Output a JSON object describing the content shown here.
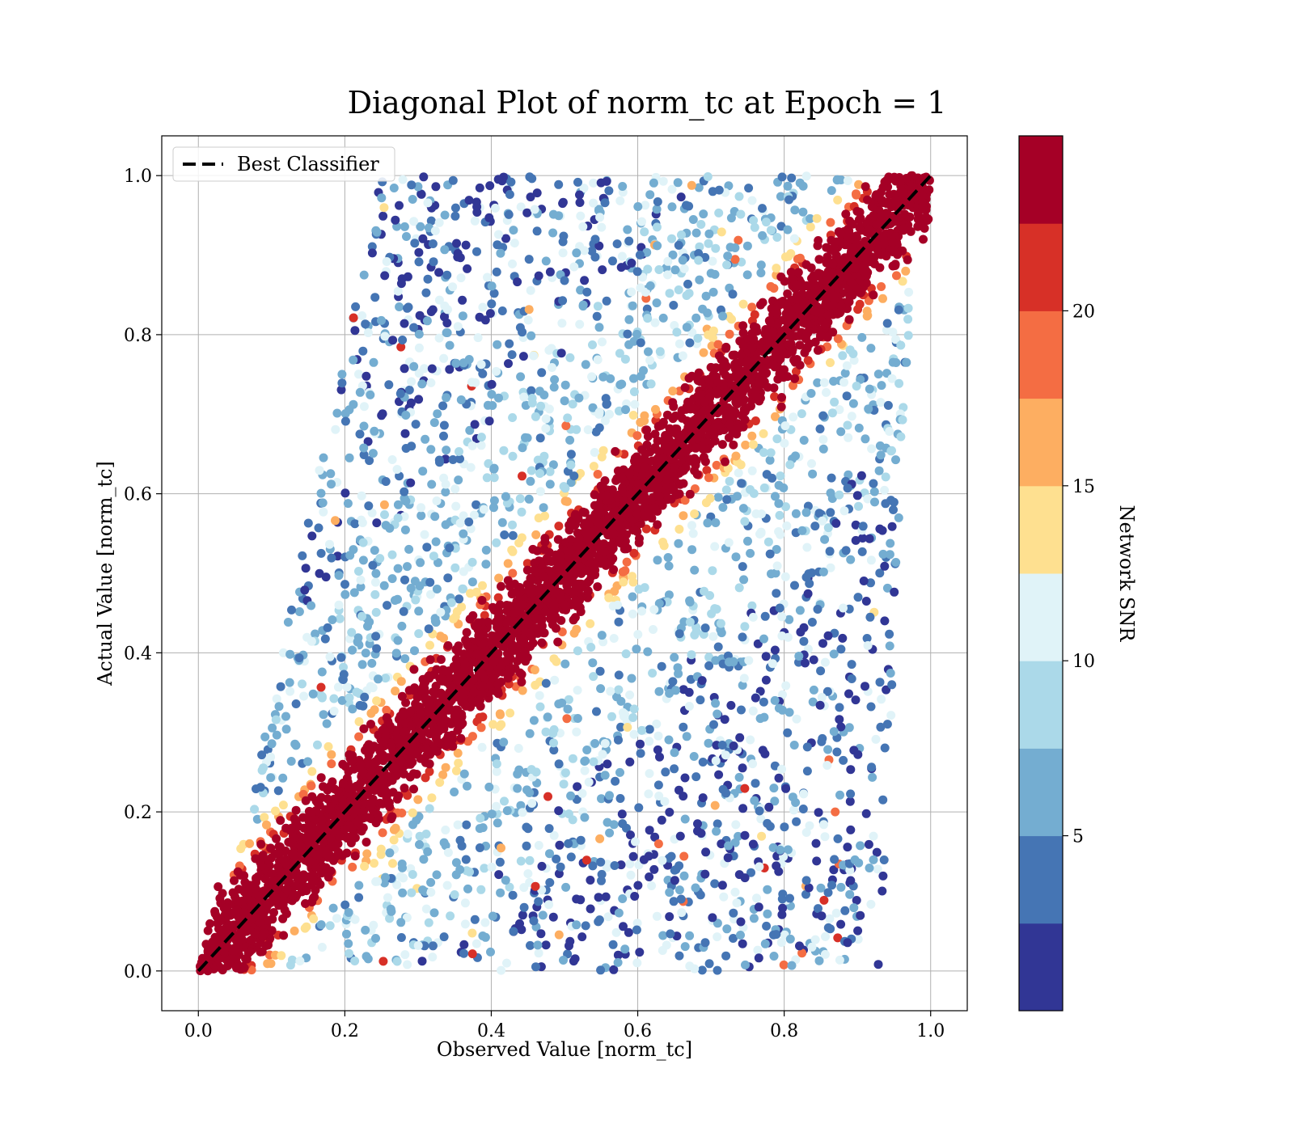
{
  "chart_data": {
    "type": "scatter",
    "title": "Diagonal Plot of norm_tc at Epoch = 1",
    "xlabel": "Observed Value [norm_tc]",
    "ylabel": "Actual Value [norm_tc]",
    "xlim": [
      -0.05,
      1.05
    ],
    "ylim": [
      -0.05,
      1.05
    ],
    "xticks": [
      "0.0",
      "0.2",
      "0.4",
      "0.6",
      "0.8",
      "1.0"
    ],
    "xtick_values": [
      0,
      0.2,
      0.4,
      0.6,
      0.8,
      1.0
    ],
    "yticks": [
      "0.0",
      "0.2",
      "0.4",
      "0.6",
      "0.8",
      "1.0"
    ],
    "ytick_values": [
      0,
      0.2,
      0.4,
      0.6,
      0.8,
      1.0
    ],
    "grid": true,
    "legend": {
      "placement": "upper-left",
      "entries": [
        "Best Classifier"
      ]
    },
    "reference_line": {
      "name": "Best Classifier",
      "x": [
        0,
        1
      ],
      "y": [
        0,
        1
      ],
      "style": "dashed",
      "color": "#000000"
    },
    "colorbar": {
      "label": "Network SNR",
      "range": [
        0,
        25
      ],
      "ticks": [
        "5",
        "10",
        "15",
        "20"
      ],
      "tick_values": [
        5,
        10,
        15,
        20
      ],
      "levels": 10,
      "colormap": [
        "#313695",
        "#4575b4",
        "#74add1",
        "#abd9e9",
        "#e0f3f8",
        "#fee090",
        "#fdae61",
        "#f46d43",
        "#d73027",
        "#a50026"
      ]
    },
    "scatter_summary": {
      "description_points_count": 6000,
      "band_halfwidth_high_snr": 0.07,
      "x_range_at_y0": [
        0.02,
        0.93
      ],
      "x_range_at_y1": [
        0.25,
        0.98
      ]
    }
  }
}
